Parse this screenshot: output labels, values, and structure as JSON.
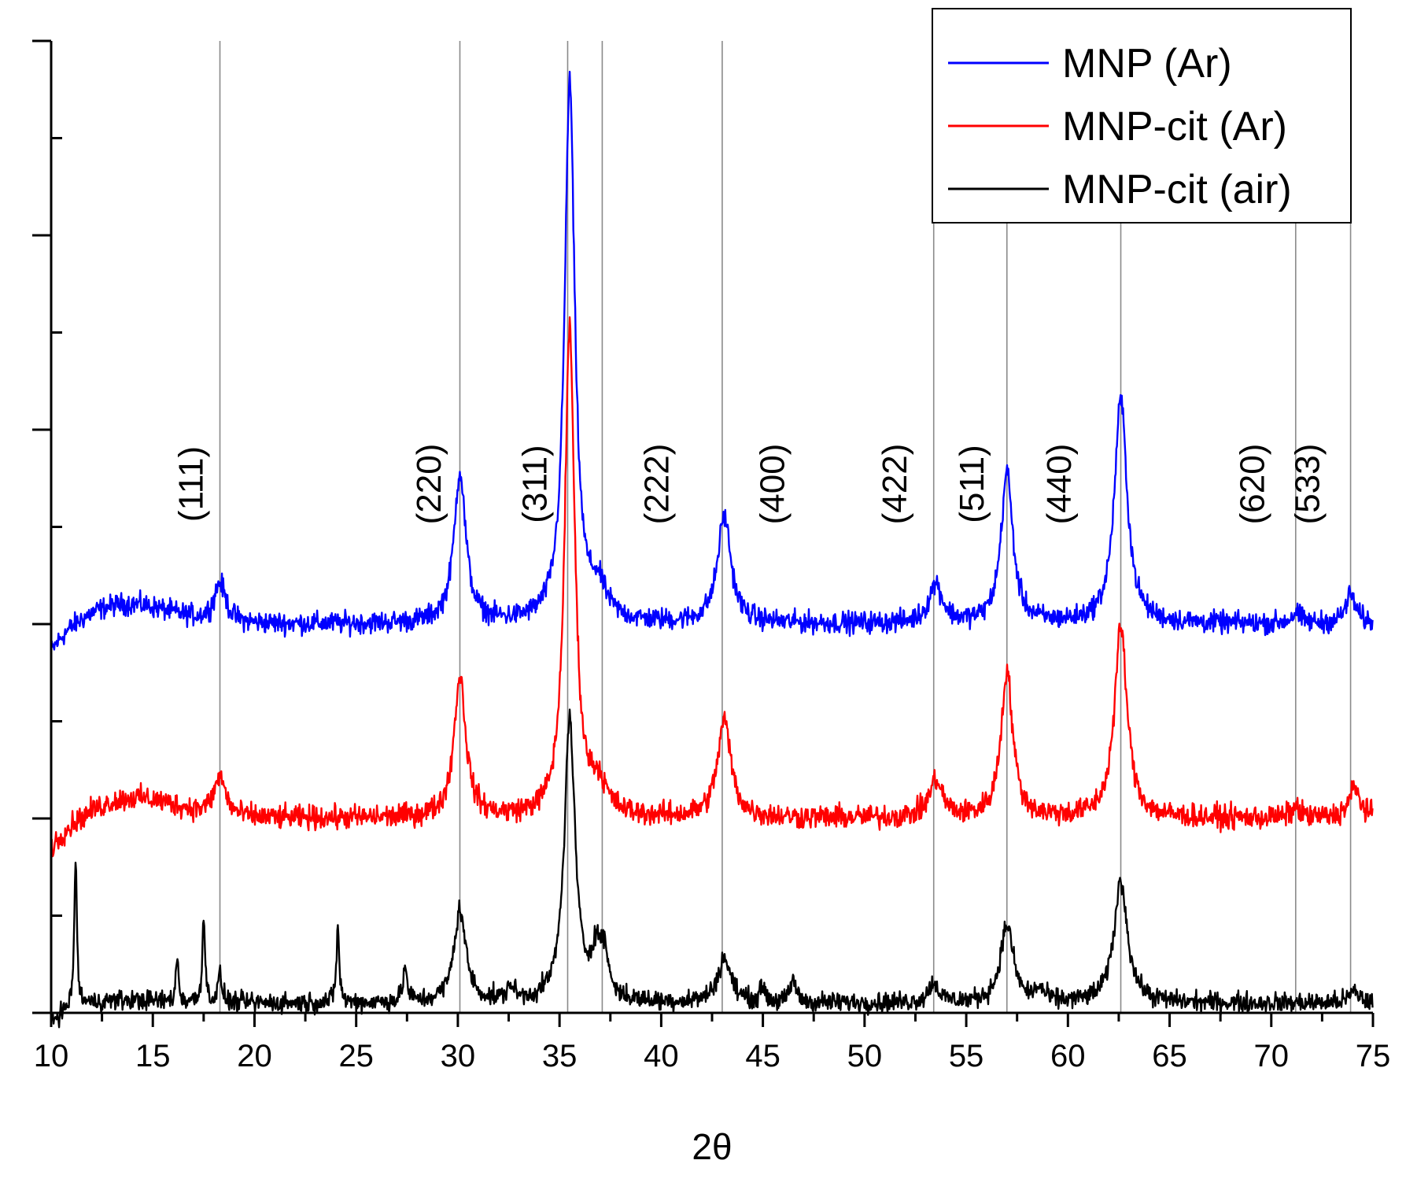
{
  "chart_data": {
    "type": "line",
    "title": "",
    "xlabel": "2θ",
    "ylabel": "",
    "xlim": [
      10,
      75
    ],
    "ylim": [
      0,
      10
    ],
    "x_ticks": [
      "10",
      "15",
      "20",
      "25",
      "30",
      "35",
      "40",
      "45",
      "50",
      "55",
      "60",
      "65",
      "70",
      "75"
    ],
    "reference_lines": [
      18.3,
      30.1,
      35.4,
      37.1,
      43.0,
      53.4,
      57.0,
      62.6,
      71.2,
      73.9
    ],
    "hkl_labels": [
      {
        "text": "(111)",
        "x": 17.0
      },
      {
        "text": "(220)",
        "x": 28.7
      },
      {
        "text": "(311)",
        "x": 33.9
      },
      {
        "text": "(222)",
        "x": 39.9
      },
      {
        "text": "(400)",
        "x": 45.6
      },
      {
        "text": "(422)",
        "x": 51.6
      },
      {
        "text": "(511)",
        "x": 55.4
      },
      {
        "text": "(440)",
        "x": 59.7
      },
      {
        "text": "(620)",
        "x": 69.2
      },
      {
        "text": "(533)",
        "x": 71.9
      }
    ],
    "series": [
      {
        "name": "MNP (Ar)",
        "color": "#0000ff",
        "baseline": 4.0,
        "start_offset": -0.35,
        "hump": {
          "x": 13.5,
          "height": 0.22,
          "width": 3.2
        },
        "noise": 0.055,
        "peaks": [
          {
            "x": 18.3,
            "h": 0.4,
            "w": 0.35
          },
          {
            "x": 30.1,
            "h": 1.55,
            "w": 0.35
          },
          {
            "x": 35.5,
            "h": 5.55,
            "w": 0.3
          },
          {
            "x": 36.9,
            "h": 0.3,
            "w": 0.5
          },
          {
            "x": 43.1,
            "h": 1.1,
            "w": 0.4
          },
          {
            "x": 53.5,
            "h": 0.4,
            "w": 0.4
          },
          {
            "x": 57.0,
            "h": 1.55,
            "w": 0.35
          },
          {
            "x": 62.6,
            "h": 2.3,
            "w": 0.38
          },
          {
            "x": 71.2,
            "h": 0.1,
            "w": 0.3
          },
          {
            "x": 73.9,
            "h": 0.3,
            "w": 0.3
          }
        ]
      },
      {
        "name": "MNP-cit (Ar)",
        "color": "#ff0000",
        "baseline": 2.0,
        "start_offset": -0.35,
        "hump": {
          "x": 14.0,
          "height": 0.22,
          "width": 3.0
        },
        "noise": 0.06,
        "peaks": [
          {
            "x": 18.3,
            "h": 0.4,
            "w": 0.35
          },
          {
            "x": 30.1,
            "h": 1.45,
            "w": 0.35
          },
          {
            "x": 35.5,
            "h": 5.0,
            "w": 0.3
          },
          {
            "x": 36.9,
            "h": 0.3,
            "w": 0.5
          },
          {
            "x": 43.1,
            "h": 1.0,
            "w": 0.4
          },
          {
            "x": 53.5,
            "h": 0.38,
            "w": 0.4
          },
          {
            "x": 57.0,
            "h": 1.5,
            "w": 0.35
          },
          {
            "x": 62.6,
            "h": 1.95,
            "w": 0.38
          },
          {
            "x": 71.2,
            "h": 0.1,
            "w": 0.3
          },
          {
            "x": 74.1,
            "h": 0.3,
            "w": 0.35
          }
        ]
      },
      {
        "name": "MNP-cit (air)",
        "color": "#000000",
        "baseline": 0.1,
        "start_offset": -0.2,
        "hump": {
          "x": 13.0,
          "height": 0.04,
          "width": 3.0
        },
        "noise": 0.05,
        "peaks": [
          {
            "x": 11.2,
            "h": 1.5,
            "w": 0.08
          },
          {
            "x": 16.2,
            "h": 0.45,
            "w": 0.08
          },
          {
            "x": 17.5,
            "h": 0.9,
            "w": 0.08
          },
          {
            "x": 18.3,
            "h": 0.28,
            "w": 0.12
          },
          {
            "x": 24.1,
            "h": 0.8,
            "w": 0.08
          },
          {
            "x": 27.4,
            "h": 0.35,
            "w": 0.12
          },
          {
            "x": 30.1,
            "h": 0.95,
            "w": 0.35
          },
          {
            "x": 32.6,
            "h": 0.15,
            "w": 0.2
          },
          {
            "x": 35.5,
            "h": 2.9,
            "w": 0.32
          },
          {
            "x": 36.8,
            "h": 0.45,
            "w": 0.3
          },
          {
            "x": 37.2,
            "h": 0.4,
            "w": 0.25
          },
          {
            "x": 43.1,
            "h": 0.45,
            "w": 0.4
          },
          {
            "x": 45.0,
            "h": 0.15,
            "w": 0.15
          },
          {
            "x": 46.5,
            "h": 0.25,
            "w": 0.15
          },
          {
            "x": 53.4,
            "h": 0.2,
            "w": 0.3
          },
          {
            "x": 57.0,
            "h": 0.8,
            "w": 0.38
          },
          {
            "x": 58.6,
            "h": 0.12,
            "w": 0.25
          },
          {
            "x": 62.6,
            "h": 1.25,
            "w": 0.4
          },
          {
            "x": 74.1,
            "h": 0.12,
            "w": 0.3
          }
        ]
      }
    ],
    "legend": {
      "position": "top-right",
      "entries": [
        "MNP (Ar)",
        "MNP-cit (Ar)",
        "MNP-cit (air)"
      ]
    }
  }
}
